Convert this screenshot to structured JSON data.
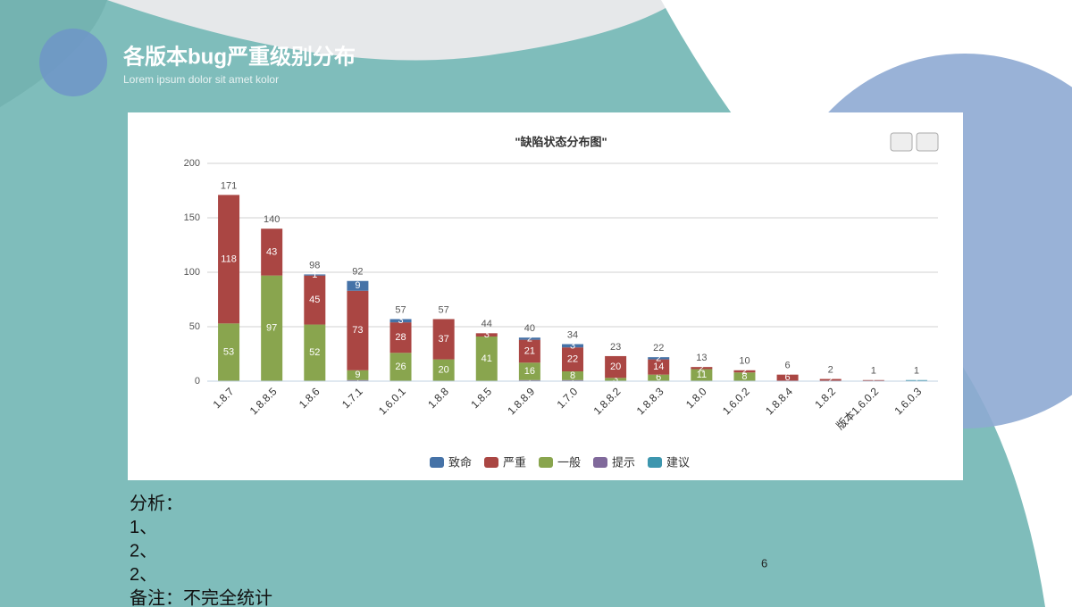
{
  "slide": {
    "title": "各版本bug严重级别分布",
    "subtitle": "Lorem ipsum dolor sit amet kolor",
    "notes": [
      "分析：",
      "1、",
      "2、",
      "2、",
      "备注：不完全统计"
    ],
    "page_number": "6"
  },
  "chart_data": {
    "type": "stacked-bar",
    "title": "\"缺陷状态分布图\"",
    "categories": [
      "1.8.7",
      "1.8.8.5",
      "1.8.6",
      "1.7.1",
      "1.6.0.1",
      "1.8.8",
      "1.8.5",
      "1.8.8.9",
      "1.7.0",
      "1.8.8.2",
      "1.8.8.3",
      "1.8.0",
      "1.6.0.2",
      "1.8.8.4",
      "1.8.2",
      "版本1.6.0.2",
      "1.6.0.3"
    ],
    "series": [
      {
        "name": "致命",
        "color": "#4572a7",
        "values": [
          0,
          0,
          1,
          9,
          3,
          0,
          0,
          2,
          3,
          0,
          2,
          0,
          0,
          0,
          0,
          0,
          0
        ]
      },
      {
        "name": "严重",
        "color": "#aa4643",
        "values": [
          118,
          43,
          45,
          73,
          28,
          37,
          3,
          21,
          22,
          20,
          14,
          2,
          2,
          6,
          2,
          1,
          0
        ]
      },
      {
        "name": "一般",
        "color": "#89a54e",
        "values": [
          53,
          97,
          52,
          9,
          26,
          20,
          41,
          16,
          8,
          3,
          6,
          11,
          8,
          0,
          0,
          0,
          0
        ]
      },
      {
        "name": "提示",
        "color": "#80699b",
        "values": [
          0,
          0,
          0,
          1,
          0,
          0,
          0,
          1,
          1,
          0,
          0,
          0,
          0,
          0,
          0,
          0,
          0
        ]
      },
      {
        "name": "建议",
        "color": "#3d96ae",
        "values": [
          0,
          0,
          0,
          0,
          0,
          0,
          0,
          0,
          0,
          0,
          0,
          0,
          0,
          0,
          0,
          0,
          1
        ]
      }
    ],
    "totals": [
      171,
      140,
      98,
      92,
      57,
      57,
      44,
      40,
      34,
      23,
      22,
      13,
      10,
      6,
      2,
      1,
      1
    ],
    "ylim": [
      0,
      200
    ],
    "yticks": [
      0,
      50,
      100,
      150,
      200
    ],
    "grid": true,
    "legend": "bottom"
  }
}
